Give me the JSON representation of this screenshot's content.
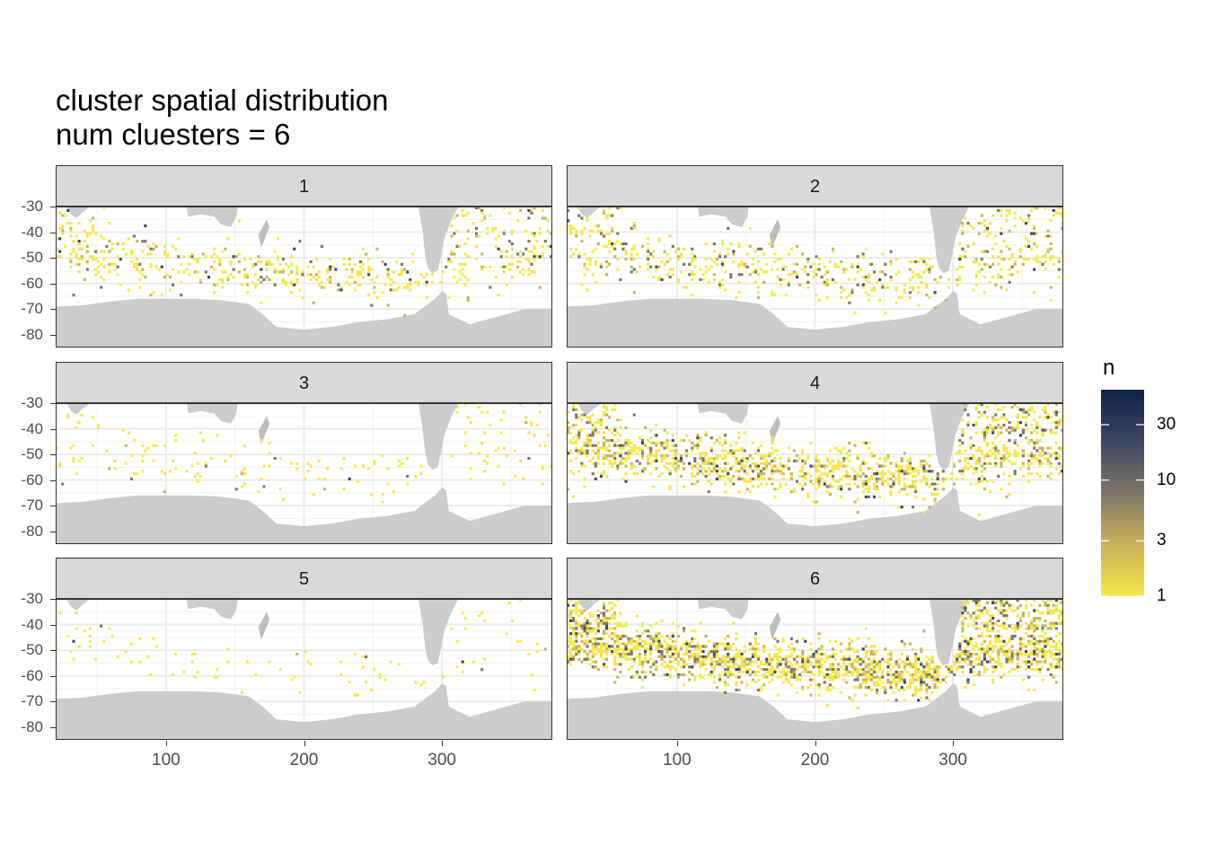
{
  "title_line1": "cluster spatial distribution",
  "title_line2": "num cluesters = 6",
  "chart_data": {
    "type": "heatmap",
    "facet_labels": [
      "1",
      "2",
      "3",
      "4",
      "5",
      "6"
    ],
    "x_ticks": [
      100,
      200,
      300
    ],
    "x_tick_labels": [
      "100",
      "200",
      "300"
    ],
    "xlim": [
      20,
      380
    ],
    "y_ticks": [
      -30,
      -40,
      -50,
      -60,
      -70,
      -80
    ],
    "y_tick_labels": [
      "-30",
      "-40",
      "-50",
      "-60",
      "-70",
      "-80"
    ],
    "ylim": [
      -85,
      -30
    ],
    "legend": {
      "title": "n",
      "scale": "log",
      "breaks": [
        1,
        3,
        10,
        30
      ],
      "break_labels": [
        "1",
        "3",
        "10",
        "30"
      ],
      "range": [
        1,
        60
      ],
      "colors": [
        "#f8e64a",
        "#c9b25a",
        "#7d7668",
        "#3d4763",
        "#0f2149"
      ]
    },
    "land_color": "#cccccc",
    "grid": true
  }
}
